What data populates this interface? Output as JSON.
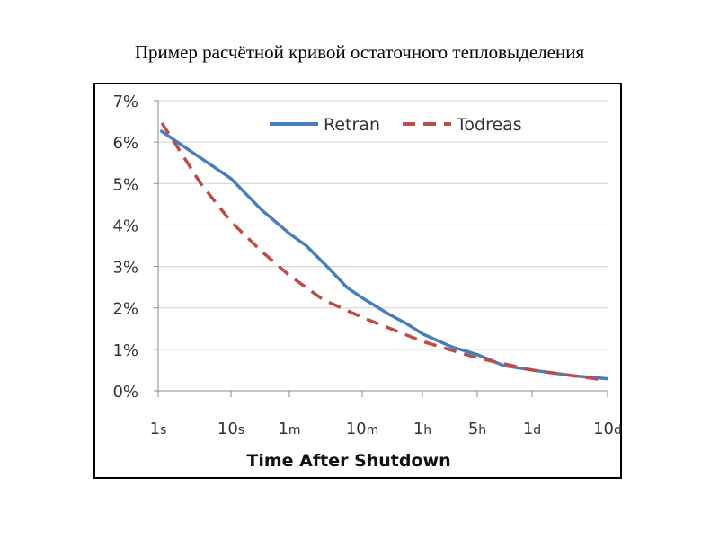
{
  "title": "Пример расчётной кривой остаточного тепловыделения",
  "chart_data": {
    "type": "line",
    "title": "Пример расчётной кривой остаточного тепловыделения",
    "xlabel": "Time After Shutdown",
    "ylabel": "",
    "x_scale": "log10 seconds",
    "x_ticks": [
      {
        "label_num": "1",
        "label_unit": "s",
        "value": 0
      },
      {
        "label_num": "10",
        "label_unit": "s",
        "value": 1
      },
      {
        "label_num": "1",
        "label_unit": "m",
        "value": 1.778
      },
      {
        "label_num": "10",
        "label_unit": "m",
        "value": 2.778
      },
      {
        "label_num": "1",
        "label_unit": "h",
        "value": 3.556
      },
      {
        "label_num": "5",
        "label_unit": "h",
        "value": 4.255
      },
      {
        "label_num": "1",
        "label_unit": "d",
        "value": 4.936
      },
      {
        "label_num": "10",
        "label_unit": "d",
        "value": 5.936
      }
    ],
    "y_ticks": [
      "0%",
      "1%",
      "2%",
      "3%",
      "4%",
      "5%",
      "6%",
      "7%"
    ],
    "ylim": [
      0,
      7
    ],
    "grid": true,
    "legend_position": "top-center",
    "series": [
      {
        "name": "Retran",
        "color": "#4a7ebb",
        "dash": false,
        "x": [
          0.03,
          0.48,
          1.0,
          1.41,
          1.78,
          2.01,
          2.34,
          2.57,
          2.78,
          3.13,
          3.35,
          3.56,
          3.93,
          4.26,
          4.58,
          4.94,
          5.49,
          5.94
        ],
        "y": [
          6.28,
          5.74,
          5.12,
          4.36,
          3.79,
          3.5,
          2.92,
          2.49,
          2.24,
          1.84,
          1.62,
          1.37,
          1.06,
          0.87,
          0.61,
          0.5,
          0.36,
          0.29
        ]
      },
      {
        "name": "Todreas",
        "color": "#be4b48",
        "dash": true,
        "x": [
          0.05,
          0.25,
          0.58,
          1.0,
          1.41,
          1.78,
          2.24,
          2.78,
          3.56,
          4.26,
          4.94,
          5.49,
          5.86
        ],
        "y": [
          6.46,
          5.92,
          5.01,
          4.08,
          3.36,
          2.78,
          2.2,
          1.77,
          1.19,
          0.79,
          0.5,
          0.36,
          0.27
        ]
      }
    ]
  }
}
